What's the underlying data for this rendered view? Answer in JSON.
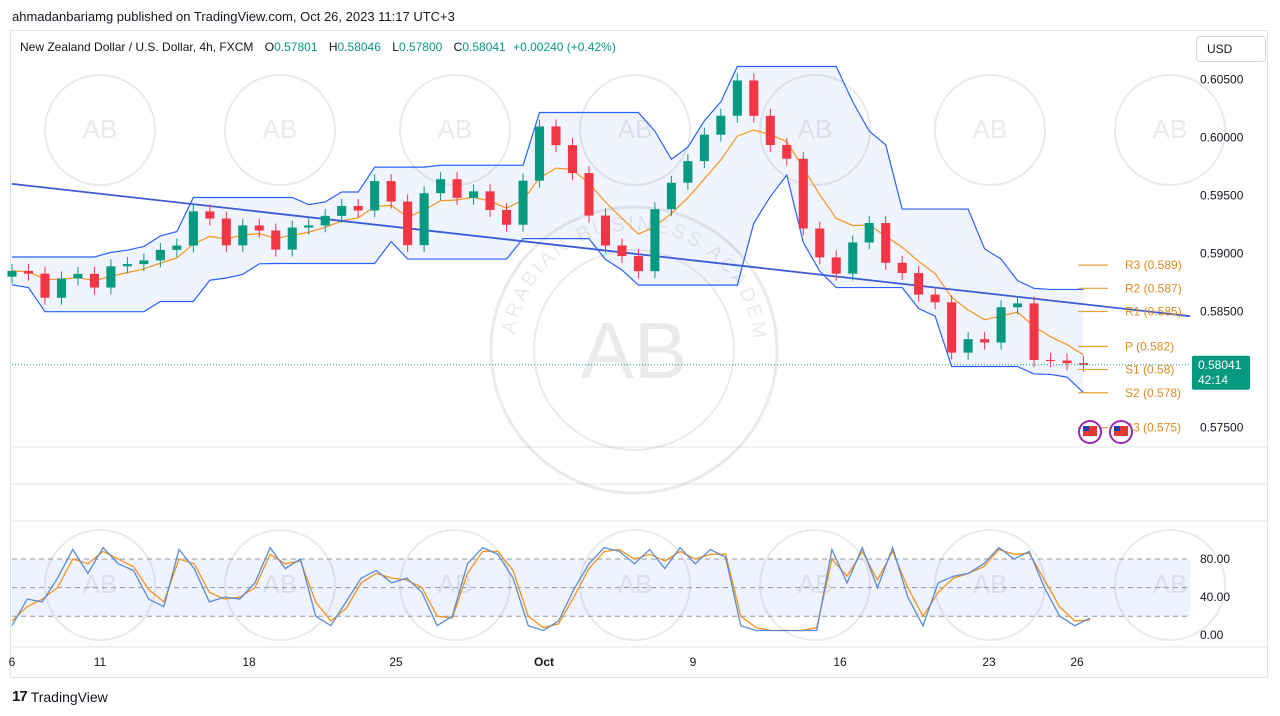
{
  "header": {
    "publisher_line": "ahmadanbariamg published on TradingView.com, Oct 26, 2023 11:17 UTC+3"
  },
  "legend": {
    "symbol": "New Zealand Dollar / U.S. Dollar, 4h, FXCM",
    "open_label": "O",
    "open": "0.57801",
    "high_label": "H",
    "high": "0.58046",
    "low_label": "L",
    "low": "0.57800",
    "close_label": "C",
    "close": "0.58041",
    "change": "+0.00240 (+0.42%)"
  },
  "currency_button": "USD",
  "footer": {
    "brand": "TradingView",
    "brand_mark": "17"
  },
  "watermark": {
    "text_main": "AB",
    "text_arc": "ARABIAN BUSINESS ACADEMY"
  },
  "colors": {
    "up": "#089981",
    "down": "#f23645",
    "donchian": "#2962ff",
    "donchian_fill": "#2962ff",
    "ema": "#f7931a",
    "trendline": "#3c5bd6",
    "pivot": "#e8a23a",
    "stoch_k": "#5b8bd6",
    "stoch_d": "#f7931a",
    "price_tag": "#089981"
  },
  "price_tag": {
    "price": "0.58041",
    "countdown": "42:14"
  },
  "chart_data": [
    {
      "type": "candlestick",
      "title": "New Zealand Dollar / U.S. Dollar, 4h, FXCM",
      "yaxis": {
        "ticks": [
          "0.60500",
          "0.60000",
          "0.59500",
          "0.59000",
          "0.58500",
          "0.57500"
        ],
        "ylim": [
          0.5735,
          0.6065
        ]
      },
      "xaxis": {
        "ticks": [
          "6",
          "11",
          "18",
          "25",
          "Oct",
          "9",
          "16",
          "23",
          "26"
        ]
      },
      "approx_path": [
        [
          0,
          0.588
        ],
        [
          3,
          0.5872
        ],
        [
          6,
          0.5885
        ],
        [
          9,
          0.59
        ],
        [
          11,
          0.593
        ],
        [
          13,
          0.592
        ],
        [
          16,
          0.5912
        ],
        [
          18,
          0.5925
        ],
        [
          20,
          0.5938
        ],
        [
          22,
          0.5955
        ],
        [
          23,
          0.594
        ],
        [
          24,
          0.592
        ],
        [
          25,
          0.5945
        ],
        [
          26,
          0.596
        ],
        [
          28,
          0.595
        ],
        [
          29,
          0.594
        ],
        [
          30,
          0.5922
        ],
        [
          31,
          0.596
        ],
        [
          32,
          0.602
        ],
        [
          33,
          0.5985
        ],
        [
          35,
          0.5945
        ],
        [
          36,
          0.59
        ],
        [
          37,
          0.5895
        ],
        [
          38,
          0.589
        ],
        [
          39,
          0.5935
        ],
        [
          40,
          0.5965
        ],
        [
          41,
          0.5975
        ],
        [
          42,
          0.6
        ],
        [
          43,
          0.603
        ],
        [
          44,
          0.604
        ],
        [
          45,
          0.6015
        ],
        [
          46,
          0.6005
        ],
        [
          47,
          0.5975
        ],
        [
          48,
          0.592
        ],
        [
          49,
          0.59
        ],
        [
          50,
          0.588
        ],
        [
          51,
          0.5915
        ],
        [
          52,
          0.592
        ],
        [
          53,
          0.589
        ],
        [
          54,
          0.5895
        ],
        [
          55,
          0.5855
        ],
        [
          56,
          0.5855
        ],
        [
          57,
          0.5825
        ],
        [
          58,
          0.582
        ],
        [
          59,
          0.5823
        ],
        [
          60,
          0.5855
        ],
        [
          61,
          0.5855
        ],
        [
          62,
          0.5815
        ],
        [
          63,
          0.58
        ],
        [
          63.5,
          0.5804
        ]
      ],
      "last_candle": {
        "open": 0.57801,
        "high": 0.58046,
        "low": 0.578,
        "close": 0.58041
      },
      "trendline": {
        "from": [
          0,
          0.596
        ],
        "to": [
          65,
          0.5846
        ]
      },
      "pivot_levels": [
        {
          "name": "R3",
          "label": "R3 (0.589)",
          "value": 0.589
        },
        {
          "name": "R2",
          "label": "R2 (0.587)",
          "value": 0.587
        },
        {
          "name": "R1",
          "label": "R1 (0.585)",
          "value": 0.585
        },
        {
          "name": "P",
          "label": "P (0.582)",
          "value": 0.582
        },
        {
          "name": "S1",
          "label": "S1 (0.58)",
          "value": 0.58
        },
        {
          "name": "S2",
          "label": "S2 (0.578)",
          "value": 0.578
        },
        {
          "name": "S3",
          "label": "S3 (0.575)",
          "value": 0.575
        }
      ]
    },
    {
      "type": "line",
      "title": "",
      "yaxis": {
        "ticks": [
          "80.00",
          "40.00",
          "0.00"
        ],
        "ylim": [
          -5,
          100
        ]
      },
      "bands": {
        "upper": 80,
        "lower": 20,
        "middle": 50
      },
      "series": [
        {
          "id": "k",
          "values": [
            10,
            38,
            35,
            60,
            90,
            65,
            92,
            75,
            68,
            38,
            30,
            90,
            70,
            35,
            40,
            38,
            55,
            92,
            70,
            80,
            20,
            10,
            35,
            60,
            68,
            55,
            60,
            45,
            10,
            20,
            75,
            92,
            85,
            60,
            10,
            5,
            15,
            48,
            75,
            92,
            88,
            75,
            90,
            70,
            92,
            75,
            90,
            82,
            10,
            5,
            5,
            5,
            5,
            5,
            90,
            55,
            92,
            50,
            92,
            40,
            10,
            55,
            62,
            65,
            75,
            92,
            80,
            88,
            50,
            20,
            10,
            18
          ]
        },
        {
          "id": "d",
          "values": [
            15,
            30,
            38,
            50,
            80,
            75,
            88,
            80,
            72,
            48,
            35,
            80,
            75,
            45,
            38,
            40,
            50,
            85,
            75,
            78,
            35,
            15,
            28,
            55,
            65,
            60,
            58,
            50,
            20,
            18,
            65,
            88,
            88,
            68,
            20,
            8,
            12,
            40,
            70,
            88,
            90,
            80,
            85,
            78,
            88,
            80,
            85,
            85,
            20,
            8,
            5,
            5,
            5,
            8,
            80,
            62,
            88,
            58,
            88,
            50,
            20,
            45,
            60,
            65,
            72,
            90,
            85,
            86,
            58,
            30,
            15,
            16
          ]
        }
      ]
    }
  ]
}
